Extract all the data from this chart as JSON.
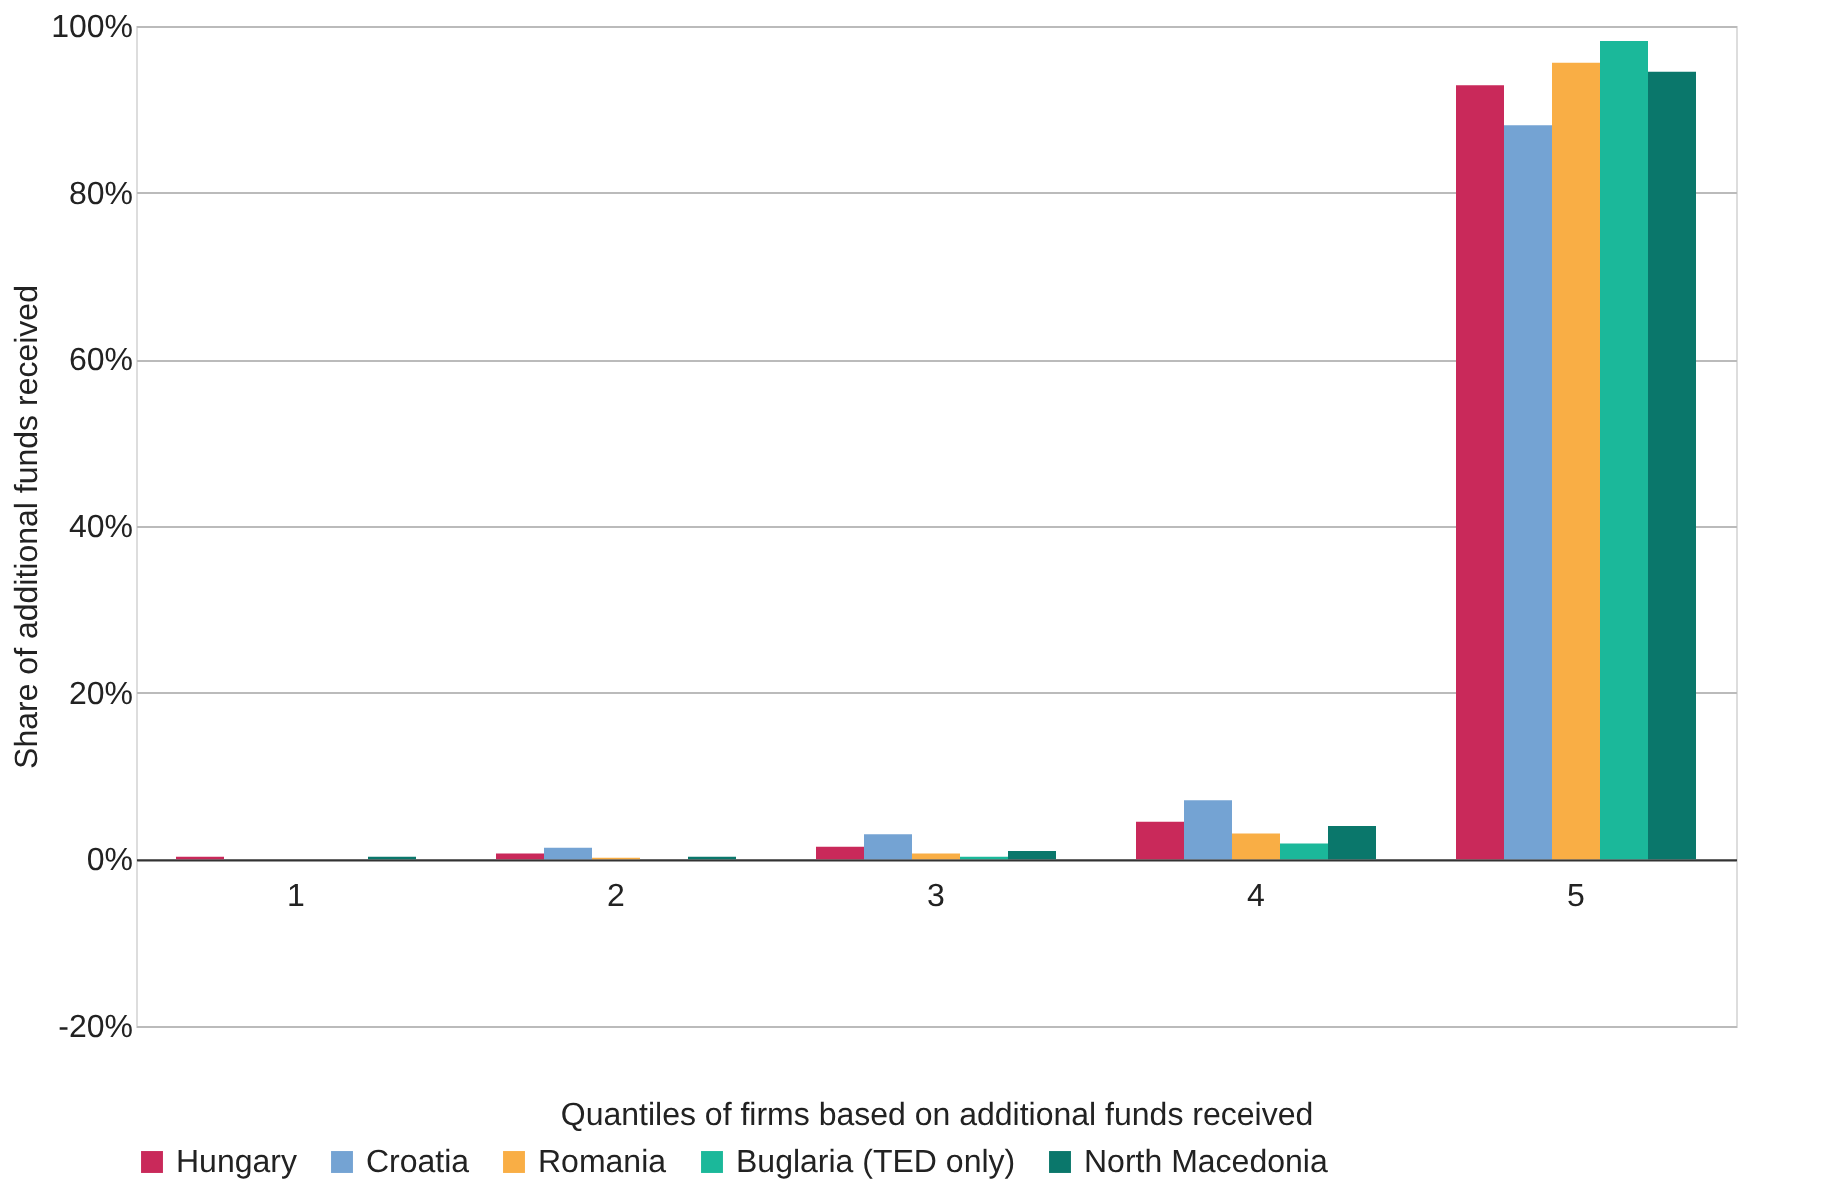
{
  "chart_data": {
    "type": "bar",
    "xlabel": "Quantiles of firms based on additional funds received",
    "ylabel": "Share of additional funds received",
    "categories": [
      "1",
      "2",
      "3",
      "4",
      "5"
    ],
    "series": [
      {
        "name": "Hungary",
        "color": "#c9295a",
        "values": [
          0.3,
          0.7,
          1.5,
          4.5,
          92.9
        ]
      },
      {
        "name": "Croatia",
        "color": "#74a3d3",
        "values": [
          0,
          1.4,
          3.0,
          7.1,
          88.1
        ]
      },
      {
        "name": "Romania",
        "color": "#f9ae45",
        "values": [
          0,
          0.2,
          0.7,
          3.1,
          95.6
        ]
      },
      {
        "name": "Buglaria (TED only)",
        "color": "#1bb89a",
        "values": [
          0,
          0,
          0.3,
          1.9,
          98.2
        ]
      },
      {
        "name": "North Macedonia",
        "color": "#0a776b",
        "values": [
          0.3,
          0.3,
          1.0,
          4.0,
          94.5
        ]
      }
    ],
    "ylim": [
      -20,
      100
    ],
    "yticks": [
      {
        "value": -20,
        "label": "-20%"
      },
      {
        "value": 0,
        "label": "0%"
      },
      {
        "value": 20,
        "label": "20%"
      },
      {
        "value": 40,
        "label": "40%"
      },
      {
        "value": 60,
        "label": "60%"
      },
      {
        "value": 80,
        "label": "80%"
      },
      {
        "value": 100,
        "label": "100%"
      }
    ],
    "grid": "y",
    "legend": "bottom"
  }
}
